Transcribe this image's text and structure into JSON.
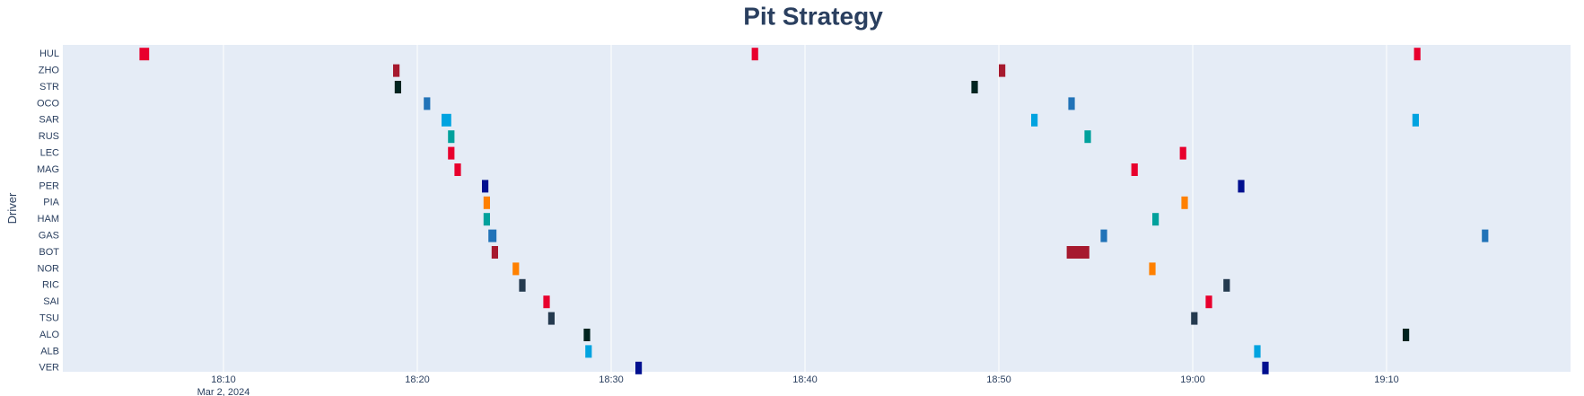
{
  "chart_data": {
    "type": "bar",
    "orientation": "horizontal-timeline",
    "title": "Pit Strategy",
    "xlabel": "",
    "ylabel": "Driver",
    "x_date_label": "Mar 2, 2024",
    "x_tick_labels": [
      "18:10",
      "18:20",
      "18:30",
      "18:40",
      "18:50",
      "19:00",
      "19:10"
    ],
    "x_ticks": [
      "18:10",
      "18:20",
      "18:30",
      "18:40",
      "18:50",
      "19:00",
      "19:10"
    ],
    "xlim": [
      "18:02:00",
      "18:19:40"
    ],
    "grid": true,
    "plot_bg": "#e5ecf6",
    "drivers": [
      "HUL",
      "ZHO",
      "STR",
      "OCO",
      "SAR",
      "RUS",
      "LEC",
      "MAG",
      "PER",
      "PIA",
      "HAM",
      "GAS",
      "BOT",
      "NOR",
      "RIC",
      "SAI",
      "TSU",
      "ALO",
      "ALB",
      "VER"
    ],
    "colors": {
      "HUL": "#e8002d",
      "ZHO": "#a6192e",
      "STR": "#002420",
      "OCO": "#2173b8",
      "SAR": "#00a3e0",
      "RUS": "#00a19c",
      "LEC": "#e8002d",
      "MAG": "#e8002d",
      "PER": "#000f8f",
      "PIA": "#ff8000",
      "HAM": "#00a19c",
      "GAS": "#2173b8",
      "BOT": "#a6192e",
      "NOR": "#ff8000",
      "RIC": "#243a4f",
      "SAI": "#e8002d",
      "TSU": "#243a4f",
      "ALO": "#002420",
      "ALB": "#00a3e0",
      "VER": "#000f8f"
    },
    "stops": [
      {
        "driver": "HUL",
        "start": "18:05:40",
        "end": "18:06:10"
      },
      {
        "driver": "HUL",
        "start": "18:37:15",
        "end": "18:37:35"
      },
      {
        "driver": "HUL",
        "start": "19:11:25",
        "end": "19:11:45"
      },
      {
        "driver": "ZHO",
        "start": "18:18:45",
        "end": "18:19:05"
      },
      {
        "driver": "ZHO",
        "start": "18:50:00",
        "end": "18:50:20"
      },
      {
        "driver": "STR",
        "start": "18:18:50",
        "end": "18:19:10"
      },
      {
        "driver": "STR",
        "start": "18:48:35",
        "end": "18:48:55"
      },
      {
        "driver": "OCO",
        "start": "18:20:20",
        "end": "18:20:40"
      },
      {
        "driver": "OCO",
        "start": "18:53:35",
        "end": "18:53:55"
      },
      {
        "driver": "SAR",
        "start": "18:21:15",
        "end": "18:21:45"
      },
      {
        "driver": "SAR",
        "start": "18:51:40",
        "end": "18:52:00"
      },
      {
        "driver": "SAR",
        "start": "19:11:20",
        "end": "19:11:40"
      },
      {
        "driver": "RUS",
        "start": "18:21:35",
        "end": "18:21:55"
      },
      {
        "driver": "RUS",
        "start": "18:54:25",
        "end": "18:54:45"
      },
      {
        "driver": "LEC",
        "start": "18:21:35",
        "end": "18:21:55"
      },
      {
        "driver": "LEC",
        "start": "18:59:20",
        "end": "18:59:40"
      },
      {
        "driver": "MAG",
        "start": "18:21:55",
        "end": "18:22:15"
      },
      {
        "driver": "MAG",
        "start": "18:56:50",
        "end": "18:57:10"
      },
      {
        "driver": "PER",
        "start": "18:23:20",
        "end": "18:23:40"
      },
      {
        "driver": "PER",
        "start": "19:02:20",
        "end": "19:02:40"
      },
      {
        "driver": "PIA",
        "start": "18:23:25",
        "end": "18:23:45"
      },
      {
        "driver": "PIA",
        "start": "18:59:25",
        "end": "18:59:45"
      },
      {
        "driver": "HAM",
        "start": "18:23:25",
        "end": "18:23:45"
      },
      {
        "driver": "HAM",
        "start": "18:57:55",
        "end": "18:58:15"
      },
      {
        "driver": "GAS",
        "start": "18:23:40",
        "end": "18:24:05"
      },
      {
        "driver": "GAS",
        "start": "18:55:15",
        "end": "18:55:35"
      },
      {
        "driver": "GAS",
        "start": "19:14:55",
        "end": "19:15:15"
      },
      {
        "driver": "BOT",
        "start": "18:23:50",
        "end": "18:24:10"
      },
      {
        "driver": "BOT",
        "start": "18:53:30",
        "end": "18:54:40"
      },
      {
        "driver": "NOR",
        "start": "18:24:55",
        "end": "18:25:15"
      },
      {
        "driver": "NOR",
        "start": "18:57:45",
        "end": "18:58:05"
      },
      {
        "driver": "RIC",
        "start": "18:25:15",
        "end": "18:25:35"
      },
      {
        "driver": "RIC",
        "start": "19:01:35",
        "end": "19:01:55"
      },
      {
        "driver": "SAI",
        "start": "18:26:30",
        "end": "18:26:50"
      },
      {
        "driver": "SAI",
        "start": "19:00:40",
        "end": "19:01:00"
      },
      {
        "driver": "TSU",
        "start": "18:26:45",
        "end": "18:27:05"
      },
      {
        "driver": "TSU",
        "start": "18:59:55",
        "end": "19:00:15"
      },
      {
        "driver": "ALO",
        "start": "18:28:35",
        "end": "18:28:55"
      },
      {
        "driver": "ALO",
        "start": "19:10:50",
        "end": "19:11:10"
      },
      {
        "driver": "ALB",
        "start": "18:28:40",
        "end": "18:29:00"
      },
      {
        "driver": "ALB",
        "start": "19:03:10",
        "end": "19:03:30"
      },
      {
        "driver": "VER",
        "start": "18:31:15",
        "end": "18:31:35"
      },
      {
        "driver": "VER",
        "start": "19:03:35",
        "end": "19:03:55"
      }
    ]
  }
}
